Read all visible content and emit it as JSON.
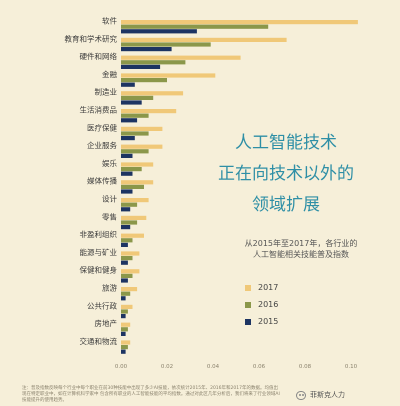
{
  "chart_data": {
    "type": "bar",
    "orientation": "horizontal",
    "categories": [
      "软件",
      "教育和学术研究",
      "硬件和网络",
      "金融",
      "制造业",
      "生活消费品",
      "医疗保健",
      "企业服务",
      "娱乐",
      "媒体传播",
      "设计",
      "零售",
      "非盈利组织",
      "能源与矿业",
      "保健和健身",
      "旅游",
      "公共行政",
      "房地产",
      "交通和物流"
    ],
    "series": [
      {
        "name": "2017",
        "color": "#f0c878",
        "values": [
          0.103,
          0.072,
          0.052,
          0.041,
          0.027,
          0.024,
          0.018,
          0.018,
          0.014,
          0.014,
          0.012,
          0.011,
          0.01,
          0.008,
          0.008,
          0.007,
          0.005,
          0.004,
          0.004
        ]
      },
      {
        "name": "2016",
        "color": "#8b974a",
        "values": [
          0.064,
          0.039,
          0.028,
          0.02,
          0.014,
          0.012,
          0.012,
          0.012,
          0.009,
          0.01,
          0.007,
          0.007,
          0.005,
          0.005,
          0.005,
          0.004,
          0.003,
          0.003,
          0.003
        ]
      },
      {
        "name": "2015",
        "color": "#1d3462",
        "values": [
          0.033,
          0.022,
          0.017,
          0.006,
          0.009,
          0.007,
          0.006,
          0.005,
          0.005,
          0.005,
          0.004,
          0.004,
          0.003,
          0.003,
          0.003,
          0.002,
          0.002,
          0.002,
          0.002
        ]
      }
    ],
    "x_ticks": [
      "0.00",
      "0.02",
      "0.04",
      "0.06",
      "0.08",
      "0.10"
    ],
    "xlim": [
      0,
      0.1
    ],
    "grid": false
  },
  "headline": [
    "人工智能技术",
    "正在向技术以外的",
    "领域扩展"
  ],
  "subtitle": [
    "从2015年至2017年，各行业的",
    "人工智能相关技能普及指数"
  ],
  "legend": {
    "items": [
      "2017",
      "2016",
      "2015"
    ]
  },
  "footnote": "注：普及指数反映每个行业中每个职业在前30种技能中出现了多少AI技能，依次统计2015年、2016年和2017年的数据。均值出现在特定职业中，如在计算机科学家中 包含所有职业的人工智能技能的平均指数。通过对此区几年分析后，我们将来了行业领域AI技能提升的使用趋势。",
  "watermark": "菲斯克人力"
}
